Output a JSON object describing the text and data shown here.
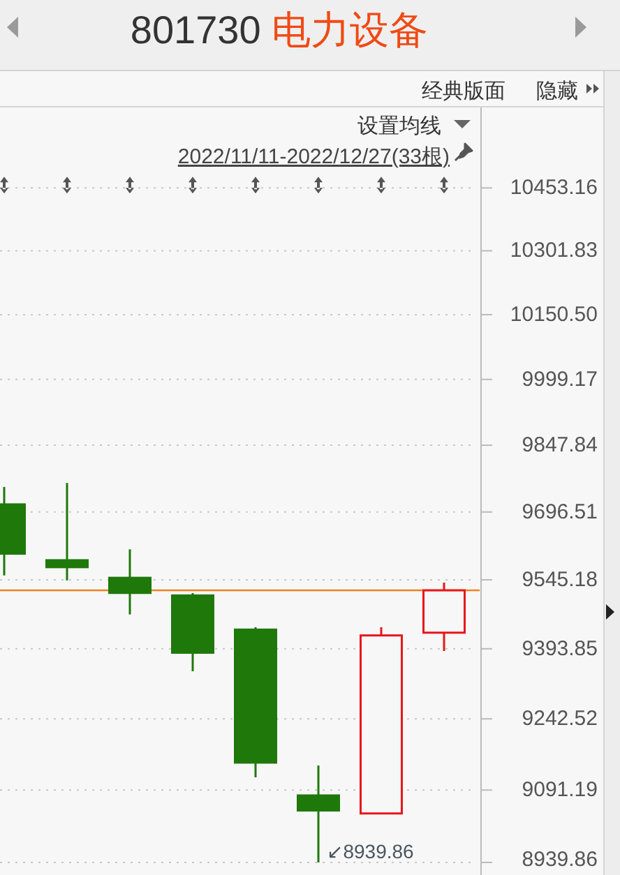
{
  "chart_data": {
    "type": "candlestick",
    "title": "801730 电力设备",
    "subtitle": "2022/11/11-2022/12/27(33根)",
    "categories": [
      null,
      null,
      null,
      null,
      null,
      null,
      null,
      null
    ],
    "ohlc": [
      [
        9716,
        9753,
        9555,
        9601
      ],
      [
        9591,
        9762,
        9544,
        9571
      ],
      [
        9552,
        9613,
        9469,
        9514
      ],
      [
        9513,
        9516,
        9345,
        9383
      ],
      [
        9438,
        9441,
        9118,
        9147
      ],
      [
        9082,
        9143,
        8939.86,
        9046
      ],
      [
        9042,
        9441,
        9042,
        9423
      ],
      [
        9429,
        9539,
        9389,
        9522
      ]
    ],
    "colors": [
      "#1e780a",
      "#1e780a",
      "#1e780a",
      "#1e780a",
      "#1e780a",
      "#1e780a",
      "#e8161b",
      "#e8161b"
    ],
    "log": true,
    "ylim": [
      8939.86,
      10650
    ],
    "yticks": [
      10453.16,
      10301.83,
      {
        "value": 10150.5,
        "label": "10150.50"
      },
      9999.17,
      9847.84,
      9696.51,
      9545.18,
      9393.85,
      9242.52,
      9091.19,
      8939.86
    ],
    "grid": "y",
    "ref_lines": [
      {
        "axis": "y",
        "value": 9522,
        "color": "#f0821e"
      }
    ],
    "annotations": [
      "经典版面",
      "隐藏",
      "设置均线",
      "↙8939.86"
    ]
  }
}
